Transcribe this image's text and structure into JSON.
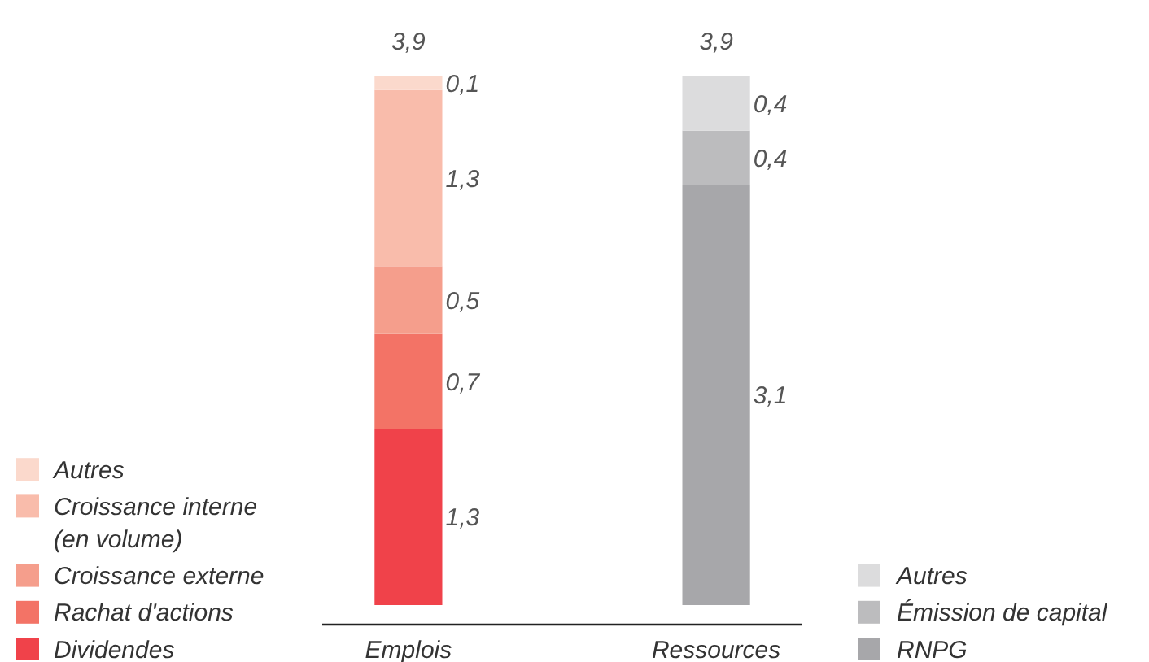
{
  "chart_data": {
    "type": "bar",
    "stacked": true,
    "categories": [
      "Emplois",
      "Ressources"
    ],
    "series": [
      {
        "name": "Dividendes",
        "color": "#f0424a",
        "values": [
          1.3,
          null
        ],
        "value_labels": [
          "1,3",
          null
        ]
      },
      {
        "name": "Rachat d'actions",
        "color": "#f37366",
        "values": [
          0.7,
          null
        ],
        "value_labels": [
          "0,7",
          null
        ]
      },
      {
        "name": "Croissance externe",
        "color": "#f59e8c",
        "values": [
          0.5,
          null
        ],
        "value_labels": [
          "0,5",
          null
        ]
      },
      {
        "name": "Croissance interne (en volume)",
        "color": "#f9bcab",
        "values": [
          1.3,
          null
        ],
        "value_labels": [
          "1,3",
          null
        ]
      },
      {
        "name": "Autres",
        "color": "#fbd9cc",
        "values": [
          0.1,
          null
        ],
        "value_labels": [
          "0,1",
          null
        ]
      },
      {
        "name": "RNPG",
        "color": "#a7a7aa",
        "values": [
          null,
          3.1
        ],
        "value_labels": [
          null,
          "3,1"
        ]
      },
      {
        "name": "Émission de capital",
        "color": "#bcbcbe",
        "values": [
          null,
          0.4
        ],
        "value_labels": [
          null,
          "0,4"
        ]
      },
      {
        "name": "Autres",
        "color": "#dcdcdd",
        "values": [
          null,
          0.4
        ],
        "value_labels": [
          null,
          "0,4"
        ]
      }
    ],
    "totals": [
      "3,9",
      "3,9"
    ],
    "legend": "bottom",
    "grid": false
  }
}
